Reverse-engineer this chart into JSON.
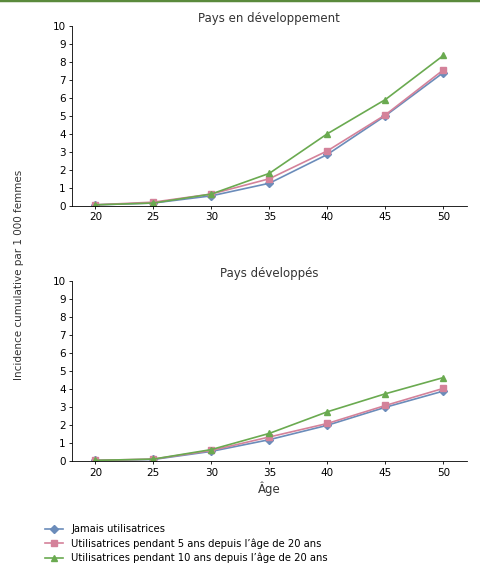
{
  "ages": [
    20,
    25,
    30,
    35,
    40,
    45,
    50
  ],
  "developing": {
    "never": [
      0.05,
      0.15,
      0.55,
      1.25,
      2.85,
      5.0,
      7.4
    ],
    "5years": [
      0.05,
      0.2,
      0.65,
      1.5,
      3.05,
      5.05,
      7.55
    ],
    "10years": [
      0.05,
      0.15,
      0.65,
      1.8,
      4.0,
      5.9,
      8.35
    ]
  },
  "developed": {
    "never": [
      0.05,
      0.1,
      0.55,
      1.2,
      2.0,
      3.0,
      3.9
    ],
    "5years": [
      0.05,
      0.12,
      0.6,
      1.35,
      2.1,
      3.1,
      4.05
    ],
    "10years": [
      0.05,
      0.12,
      0.65,
      1.55,
      2.75,
      3.75,
      4.65
    ]
  },
  "colors": {
    "never": "#6b8cba",
    "5years": "#d4829a",
    "10years": "#6aaa50"
  },
  "markers": {
    "never": "D",
    "5years": "s",
    "10years": "^"
  },
  "markersize": 4,
  "linewidth": 1.2,
  "title_top": "Pays en développement",
  "title_bottom": "Pays développés",
  "ylabel": "Incidence cumulative par 1 000 femmes",
  "xlabel": "Âge",
  "ylim": [
    0,
    10
  ],
  "yticks": [
    0,
    1,
    2,
    3,
    4,
    5,
    6,
    7,
    8,
    9,
    10
  ],
  "xticks": [
    20,
    25,
    30,
    35,
    40,
    45,
    50
  ],
  "legend_labels": [
    "Jamais utilisatrices",
    "Utilisatrices pendant 5 ans depuis l’âge de 20 ans",
    "Utilisatrices pendant 10 ans depuis l’âge de 20 ans"
  ],
  "background_color": "#ffffff",
  "top_border_color": "#5a8a3c",
  "top_border_linewidth": 2.5
}
